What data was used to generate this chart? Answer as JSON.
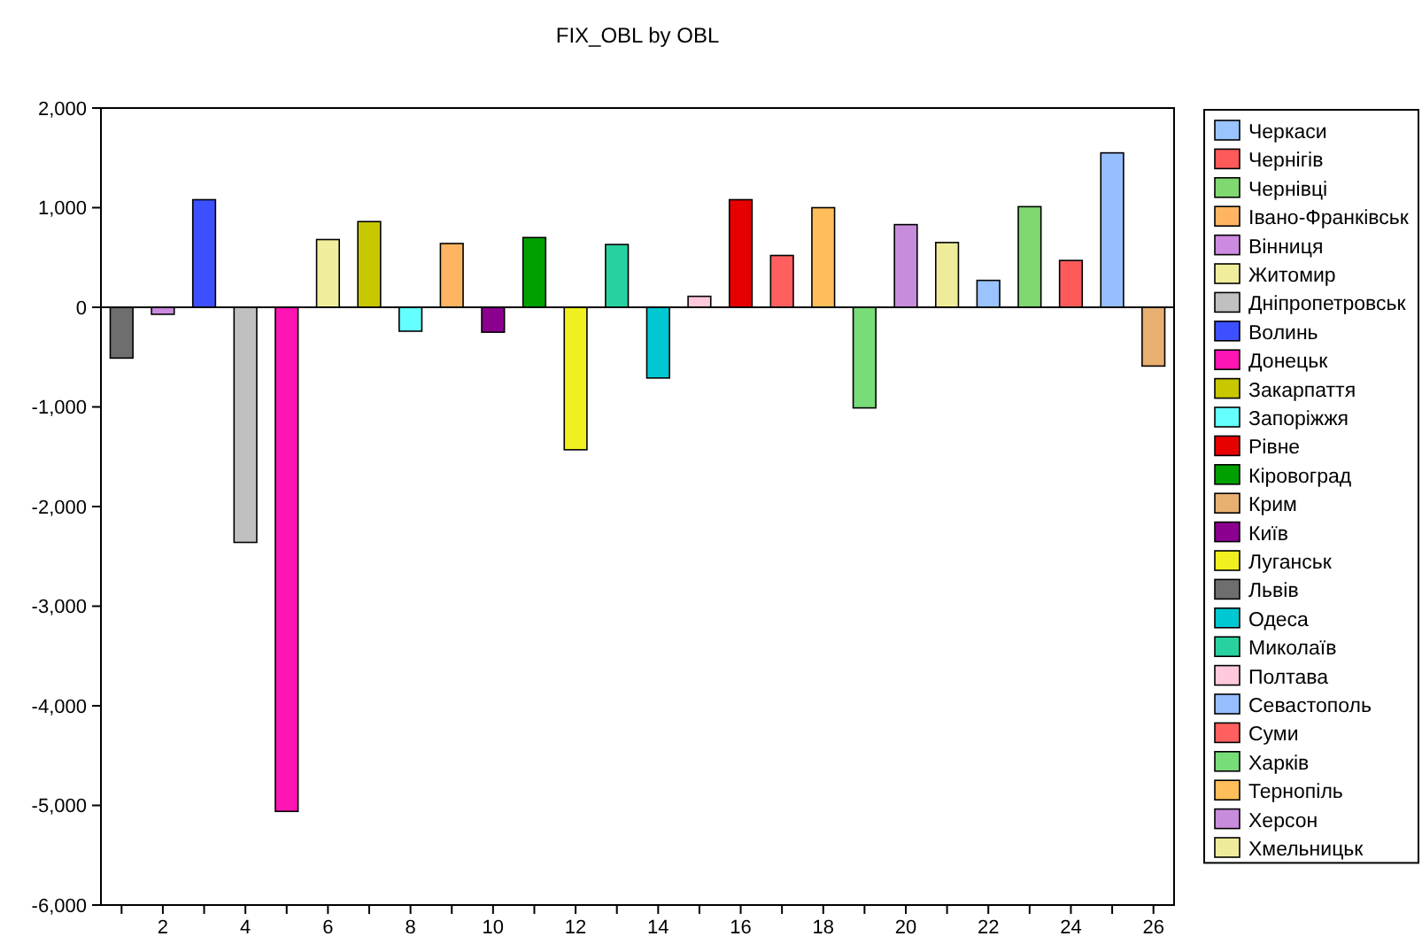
{
  "chart_data": {
    "type": "bar",
    "title": "FIX_OBL by OBL",
    "legend": "right",
    "xlim": [
      0.5,
      26.5
    ],
    "xticks": [
      {
        "value": 1,
        "label": null
      },
      2,
      {
        "value": 3,
        "label": null
      },
      4,
      {
        "value": 5,
        "label": null
      },
      6,
      {
        "value": 7,
        "label": null
      },
      8,
      {
        "value": 9,
        "label": null
      },
      10,
      {
        "value": 11,
        "label": null
      },
      12,
      {
        "value": 13,
        "label": null
      },
      14,
      {
        "value": 15,
        "label": null
      },
      16,
      {
        "value": 17,
        "label": null
      },
      18,
      {
        "value": 19,
        "label": null
      },
      20,
      {
        "value": 21,
        "label": null
      },
      22,
      {
        "value": 23,
        "label": null
      },
      24,
      {
        "value": 25,
        "label": null
      },
      26
    ],
    "ylim": [
      -6000,
      2000
    ],
    "yticks": [
      {
        "value": -6000,
        "label": "-6,000"
      },
      {
        "value": -5000,
        "label": "-5,000"
      },
      {
        "value": -4000,
        "label": "-4,000"
      },
      {
        "value": -3000,
        "label": "-3,000"
      },
      {
        "value": -2000,
        "label": "-2,000"
      },
      {
        "value": -1000,
        "label": "-1,000"
      },
      {
        "value": 0,
        "label": "0"
      },
      {
        "value": 1000,
        "label": "1,000"
      },
      {
        "value": 2000,
        "label": "2,000"
      }
    ],
    "ref_lines": [
      {
        "axis": "y",
        "value": 0,
        "color": "#000000"
      }
    ],
    "series": [
      {
        "name": "Черкаси",
        "color": "#99c4ff",
        "x": [
          22
        ],
        "values": [
          270
        ]
      },
      {
        "name": "Чернігів",
        "color": "#ff5a5a",
        "x": [
          24
        ],
        "values": [
          470
        ]
      },
      {
        "name": "Чернівці",
        "color": "#80d870",
        "x": [
          23
        ],
        "values": [
          1010
        ]
      },
      {
        "name": "Івано-Франківськ",
        "color": "#ffb464",
        "x": [
          9
        ],
        "values": [
          640
        ]
      },
      {
        "name": "Вінниця",
        "color": "#cc8ae0",
        "x": [
          2
        ],
        "values": [
          -70
        ]
      },
      {
        "name": "Житомир",
        "color": "#f0ee9c",
        "x": [
          6
        ],
        "values": [
          680
        ]
      },
      {
        "name": "Дніпропетровськ",
        "color": "#c0c0c0",
        "x": [
          4
        ],
        "values": [
          -2360
        ]
      },
      {
        "name": "Волинь",
        "color": "#3c50ff",
        "x": [
          3
        ],
        "values": [
          1080
        ]
      },
      {
        "name": "Донецьк",
        "color": "#ff14b4",
        "x": [
          5
        ],
        "values": [
          -5060
        ]
      },
      {
        "name": "Закарпаття",
        "color": "#c8c800",
        "x": [
          7
        ],
        "values": [
          860
        ]
      },
      {
        "name": "Запоріжжя",
        "color": "#64ffff",
        "x": [
          8
        ],
        "values": [
          -240
        ]
      },
      {
        "name": "Рівне",
        "color": "#e60000",
        "x": [
          16
        ],
        "values": [
          1080
        ]
      },
      {
        "name": "Кіровоград",
        "color": "#00a000",
        "x": [
          11
        ],
        "values": [
          700
        ]
      },
      {
        "name": "Крим",
        "color": "#e8b070",
        "x": [
          26
        ],
        "values": [
          -590
        ]
      },
      {
        "name": "Київ",
        "color": "#8c0090",
        "x": [
          10
        ],
        "values": [
          -250
        ]
      },
      {
        "name": "Луганськ",
        "color": "#f0f020",
        "x": [
          12
        ],
        "values": [
          -1430
        ]
      },
      {
        "name": "Львів",
        "color": "#6e6e6e",
        "x": [
          1
        ],
        "values": [
          -510
        ]
      },
      {
        "name": "Одеса",
        "color": "#00c8d2",
        "x": [
          14
        ],
        "values": [
          -710
        ]
      },
      {
        "name": "Миколаїв",
        "color": "#28d2a0",
        "x": [
          13
        ],
        "values": [
          630
        ]
      },
      {
        "name": "Полтава",
        "color": "#ffc8dc",
        "x": [
          15
        ],
        "values": [
          110
        ]
      },
      {
        "name": "Севастополь",
        "color": "#96beff",
        "x": [
          25
        ],
        "values": [
          1550
        ]
      },
      {
        "name": "Суми",
        "color": "#ff5f5f",
        "x": [
          17
        ],
        "values": [
          520
        ]
      },
      {
        "name": "Харків",
        "color": "#78dc78",
        "x": [
          19
        ],
        "values": [
          -1010
        ]
      },
      {
        "name": "Тернопіль",
        "color": "#ffbe5a",
        "x": [
          18
        ],
        "values": [
          1000
        ]
      },
      {
        "name": "Херсон",
        "color": "#c88cdc",
        "x": [
          20
        ],
        "values": [
          830
        ]
      },
      {
        "name": "Хмельницьк",
        "color": "#eeec9a",
        "x": [
          21
        ],
        "values": [
          650
        ]
      }
    ]
  }
}
